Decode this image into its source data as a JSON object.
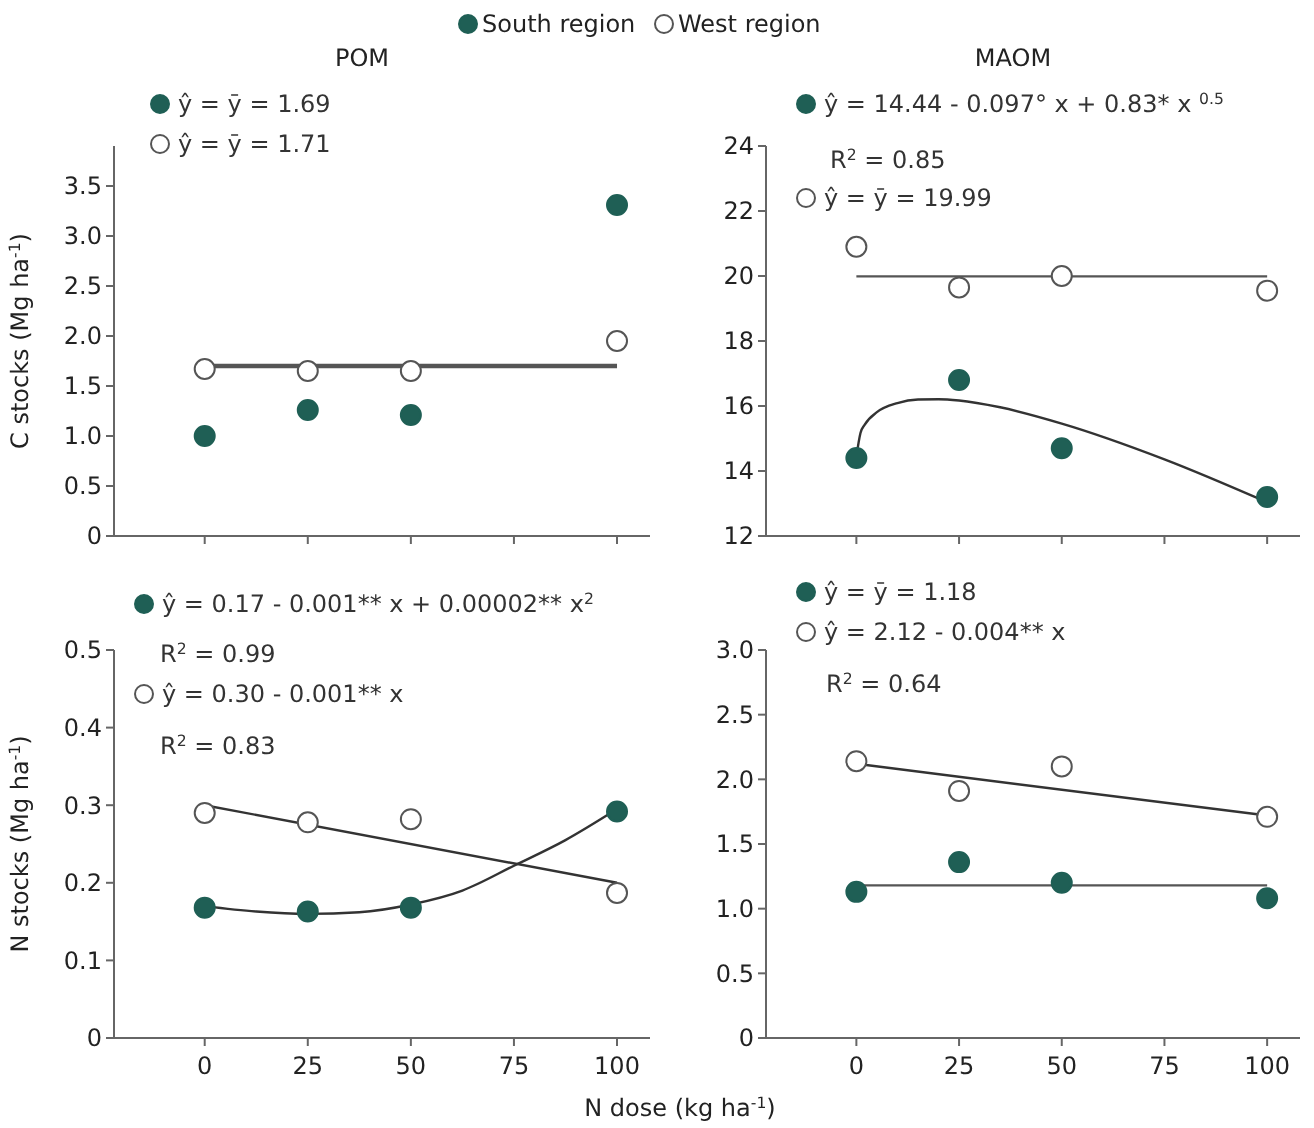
{
  "chart_data": [
    {
      "type": "scatter",
      "title": "POM",
      "ylabel": "C stocks (Mg ha$^{-1}$)",
      "x": [
        0,
        25,
        50,
        100
      ],
      "xlim": [
        -22,
        108
      ],
      "xticks": [
        0,
        25,
        50,
        75,
        100
      ],
      "ylim": [
        0,
        3.9
      ],
      "yticks": [
        0,
        0.5,
        {
          "value": 1,
          "label": "1.0"
        },
        1.5,
        {
          "value": 2,
          "label": "2.0"
        },
        2.5,
        {
          "value": 3,
          "label": "3.0"
        },
        3.5
      ],
      "tick_labels": "y",
      "marker": "circle",
      "legend": "top",
      "grid": false,
      "series": [
        {
          "name": "South region",
          "color": "#1f5f55",
          "values": [
            1.0,
            1.26,
            1.21,
            3.31
          ]
        },
        {
          "name": "West region",
          "color": "#ffffff",
          "values": [
            1.67,
            1.65,
            1.65,
            1.95
          ]
        },
        {
          "type": "line",
          "marker": "none",
          "color": "#555555",
          "x": [
            0,
            100
          ],
          "values": [
            1.69,
            1.69
          ]
        },
        {
          "type": "line",
          "marker": "none",
          "color": "#555555",
          "x": [
            0,
            100
          ],
          "values": [
            1.71,
            1.71
          ]
        }
      ],
      "annotations": [
        "ŷ = ȳ = 1.69",
        "ŷ = ȳ = 1.71"
      ]
    },
    {
      "type": "scatter",
      "title": "MAOM",
      "x": [
        0,
        25,
        50,
        100
      ],
      "xlim": [
        -22,
        108
      ],
      "xticks": [
        0,
        25,
        50,
        75,
        100
      ],
      "ylim": [
        12,
        24
      ],
      "yticks": [
        12,
        14,
        16,
        18,
        20,
        22,
        24
      ],
      "tick_labels": "y",
      "marker": "circle",
      "grid": false,
      "series": [
        {
          "color": "#1f5f55",
          "values": [
            14.4,
            16.8,
            14.7,
            13.2
          ]
        },
        {
          "color": "#ffffff",
          "values": [
            20.9,
            19.65,
            20.0,
            19.55
          ]
        },
        {
          "type": "line",
          "marker": "none",
          "color": "#333333",
          "x": [
            0,
            1,
            2,
            5,
            10,
            15,
            20,
            25,
            35,
            50,
            75,
            100
          ],
          "values": [
            14.44,
            15.17,
            15.42,
            15.81,
            16.09,
            16.2,
            16.21,
            16.17,
            15.96,
            15.46,
            14.36,
            13.04
          ]
        },
        {
          "type": "line",
          "marker": "none",
          "color": "#555555",
          "x": [
            0,
            100
          ],
          "values": [
            19.99,
            19.99
          ]
        }
      ],
      "annotations": [
        "ŷ = 14.44 - 0.097° x + 0.83* x $^{0.5}$",
        "R$^{2}$ = 0.85",
        "ŷ = ȳ = 19.99"
      ]
    },
    {
      "type": "scatter",
      "xlabel": "N dose (kg ha$^{-1}$)",
      "ylabel": "N stocks (Mg ha$^{-1}$)",
      "x": [
        0,
        25,
        50,
        100
      ],
      "xlim": [
        -22,
        108
      ],
      "xticks": [
        0,
        25,
        50,
        75,
        100
      ],
      "ylim": [
        0,
        0.5
      ],
      "yticks": [
        0,
        0.1,
        0.2,
        0.3,
        0.4,
        0.5
      ],
      "marker": "circle",
      "grid": false,
      "series": [
        {
          "color": "#1f5f55",
          "values": [
            0.168,
            0.163,
            0.168,
            0.292
          ]
        },
        {
          "color": "#ffffff",
          "values": [
            0.29,
            0.278,
            0.282,
            0.187
          ]
        },
        {
          "type": "line",
          "marker": "none",
          "color": "#333333",
          "x": [
            0,
            12.5,
            25,
            37.5,
            50,
            62.5,
            75,
            87.5,
            100
          ],
          "values": [
            0.17,
            0.163,
            0.16,
            0.162,
            0.172,
            0.19,
            0.222,
            0.255,
            0.295
          ]
        },
        {
          "type": "line",
          "marker": "none",
          "color": "#333333",
          "x": [
            0,
            100
          ],
          "values": [
            0.3,
            0.2
          ]
        }
      ],
      "annotations": [
        "ŷ = 0.17 - 0.001** x + 0.00002** x$^{2}$",
        "R$^{2}$ = 0.99",
        "ŷ = 0.30 - 0.001** x",
        "R$^{2}$ = 0.83"
      ]
    },
    {
      "type": "scatter",
      "x": [
        0,
        25,
        50,
        100
      ],
      "xlim": [
        -22,
        108
      ],
      "xticks": [
        0,
        25,
        50,
        75,
        100
      ],
      "ylim": [
        0,
        3
      ],
      "yticks": [
        0,
        0.5,
        {
          "value": 1,
          "label": "1.0"
        },
        1.5,
        {
          "value": 2,
          "label": "2.0"
        },
        2.5,
        {
          "value": 3,
          "label": "3.0"
        }
      ],
      "marker": "circle",
      "grid": false,
      "series": [
        {
          "color": "#1f5f55",
          "values": [
            1.13,
            1.36,
            1.2,
            1.08
          ]
        },
        {
          "color": "#ffffff",
          "values": [
            2.14,
            1.91,
            2.1,
            1.71
          ]
        },
        {
          "type": "line",
          "marker": "none",
          "color": "#555555",
          "x": [
            0,
            100
          ],
          "values": [
            1.18,
            1.18
          ]
        },
        {
          "type": "line",
          "marker": "none",
          "color": "#333333",
          "x": [
            0,
            100
          ],
          "values": [
            2.12,
            1.72
          ]
        }
      ],
      "annotations": [
        "ŷ = ȳ = 1.18",
        "ŷ = 2.12 - 0.004** x",
        "R$^{2}$ = 0.64"
      ]
    }
  ]
}
